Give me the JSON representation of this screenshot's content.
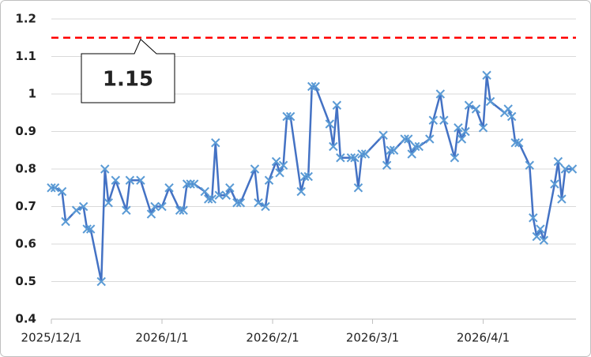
{
  "chart_data": {
    "type": "line",
    "x": [
      "2025/12/1",
      "2025/12/2",
      "2025/12/4",
      "2025/12/5",
      "2025/12/8",
      "2025/12/10",
      "2025/12/11",
      "2025/12/12",
      "2025/12/15",
      "2025/12/16",
      "2025/12/17",
      "2025/12/19",
      "2025/12/22",
      "2025/12/23",
      "2025/12/26",
      "2025/12/29",
      "2025/12/30",
      "2026/1/1",
      "2026/1/3",
      "2026/1/6",
      "2026/1/7",
      "2026/1/8",
      "2026/1/9",
      "2026/1/10",
      "2026/1/13",
      "2026/1/14",
      "2026/1/15",
      "2026/1/16",
      "2026/1/17",
      "2026/1/19",
      "2026/1/20",
      "2026/1/22",
      "2026/1/23",
      "2026/1/27",
      "2026/1/28",
      "2026/1/30",
      "2026/1/31",
      "2026/2/2",
      "2026/2/3",
      "2026/2/4",
      "2026/2/5",
      "2026/2/6",
      "2026/2/9",
      "2026/2/10",
      "2026/2/11",
      "2026/2/12",
      "2026/2/13",
      "2026/2/17",
      "2026/2/18",
      "2026/2/19",
      "2026/2/20",
      "2026/2/23",
      "2026/2/24",
      "2026/2/25",
      "2026/2/26",
      "2026/2/27",
      "2026/3/4",
      "2026/3/5",
      "2026/3/6",
      "2026/3/7",
      "2026/3/10",
      "2026/3/11",
      "2026/3/12",
      "2026/3/13",
      "2026/3/14",
      "2026/3/17",
      "2026/3/18",
      "2026/3/20",
      "2026/3/21",
      "2026/3/24",
      "2026/3/25",
      "2026/3/26",
      "2026/3/27",
      "2026/3/28",
      "2026/3/30",
      "2026/4/1",
      "2026/4/2",
      "2026/4/3",
      "2026/4/7",
      "2026/4/8",
      "2026/4/9",
      "2026/4/10",
      "2026/4/11",
      "2026/4/14",
      "2026/4/15",
      "2026/4/16",
      "2026/4/17",
      "2026/4/18",
      "2026/4/21",
      "2026/4/22",
      "2026/4/23",
      "2026/4/24",
      "2026/4/26"
    ],
    "series": [
      {
        "line_color": "#4472C4",
        "color": "#5B9BD5",
        "values": [
          0.75,
          0.75,
          0.74,
          0.66,
          0.69,
          0.7,
          0.64,
          0.64,
          0.5,
          0.8,
          0.71,
          0.77,
          0.69,
          0.77,
          0.77,
          0.68,
          0.7,
          0.7,
          0.75,
          0.69,
          0.69,
          0.76,
          0.76,
          0.76,
          0.74,
          0.72,
          0.72,
          0.87,
          0.73,
          0.73,
          0.75,
          0.71,
          0.71,
          0.8,
          0.71,
          0.7,
          0.77,
          0.82,
          0.79,
          0.81,
          0.94,
          0.94,
          0.74,
          0.78,
          0.78,
          1.02,
          1.02,
          0.92,
          0.86,
          0.97,
          0.83,
          0.83,
          0.83,
          0.75,
          0.84,
          0.84,
          0.89,
          0.81,
          0.85,
          0.85,
          0.88,
          0.88,
          0.84,
          0.86,
          0.86,
          0.88,
          0.93,
          1.0,
          0.93,
          0.83,
          0.91,
          0.88,
          0.9,
          0.97,
          0.96,
          0.91,
          1.05,
          0.98,
          0.95,
          0.96,
          0.94,
          0.87,
          0.87,
          0.81,
          0.67,
          0.62,
          0.64,
          0.61,
          0.76,
          0.82,
          0.72,
          0.8,
          0.8
        ]
      }
    ],
    "xlim": [
      "2025/12/1",
      "2026/4/27"
    ],
    "xticks": [
      "2025/12/1",
      "2026/1/1",
      "2026/2/1",
      "2026/3/1",
      "2026/4/1"
    ],
    "ylim": [
      0.4,
      1.2
    ],
    "yticks": [
      0.4,
      0.5,
      0.6,
      0.7,
      0.8,
      0.9,
      1,
      1.1,
      1.2
    ],
    "grid": true,
    "reference_line": {
      "value": 1.15,
      "color": "#FF0000"
    }
  }
}
